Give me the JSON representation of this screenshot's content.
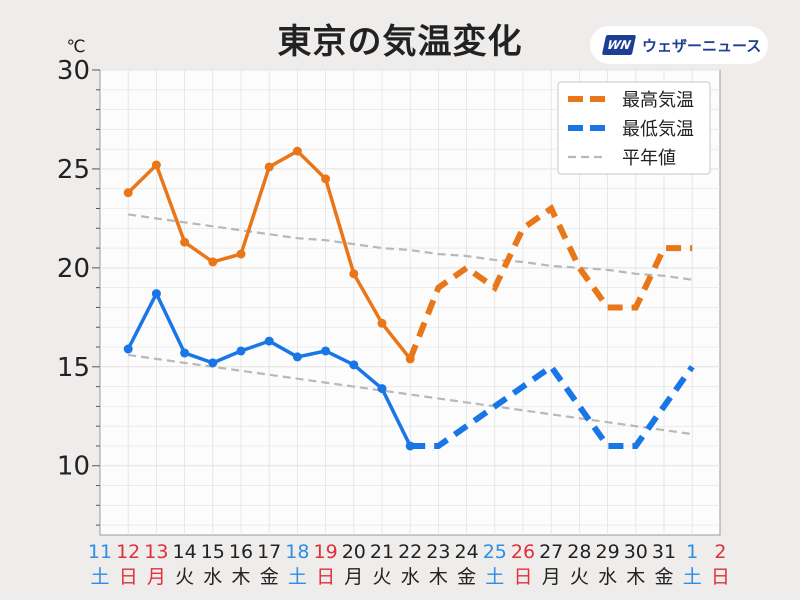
{
  "header": {
    "title": "東京の気温変化",
    "logo_mark": "WN",
    "logo_text": "ウェザーニュース"
  },
  "chart_data": {
    "type": "line",
    "title": "東京の気温変化",
    "unit_label": "℃",
    "ylim": [
      6.5,
      30
    ],
    "yticks": [
      10,
      15,
      20,
      25,
      30
    ],
    "grid": true,
    "legend_position": "top-right",
    "x_days": [
      "11",
      "12",
      "13",
      "14",
      "15",
      "16",
      "17",
      "18",
      "19",
      "20",
      "21",
      "22",
      "23",
      "24",
      "25",
      "26",
      "27",
      "28",
      "29",
      "30",
      "31",
      "1",
      "2"
    ],
    "x_weekdays": [
      "土",
      "日",
      "月",
      "火",
      "水",
      "木",
      "金",
      "土",
      "日",
      "月",
      "火",
      "水",
      "木",
      "金",
      "土",
      "日",
      "月",
      "火",
      "水",
      "木",
      "金",
      "土",
      "日"
    ],
    "x_label_colors": [
      "#2c8ee8",
      "#e0303a",
      "#e0303a",
      "#222222",
      "#222222",
      "#222222",
      "#222222",
      "#2c8ee8",
      "#e0303a",
      "#222222",
      "#222222",
      "#222222",
      "#222222",
      "#222222",
      "#2c8ee8",
      "#e0303a",
      "#222222",
      "#222222",
      "#222222",
      "#222222",
      "#222222",
      "#2c8ee8",
      "#e0303a"
    ],
    "series": [
      {
        "name": "最高気温",
        "color": "#e9771a",
        "observed": [
          23.8,
          25.2,
          21.3,
          20.3,
          20.7,
          25.1,
          25.9,
          24.5,
          19.7,
          17.2,
          15.4
        ],
        "forecast": [
          15.4,
          19,
          20,
          19,
          22,
          23,
          20,
          18,
          18,
          21,
          21
        ],
        "forecast_start_index": 11
      },
      {
        "name": "最低気温",
        "color": "#1976e6",
        "observed": [
          15.9,
          18.7,
          15.7,
          15.2,
          15.8,
          16.3,
          15.5,
          15.8,
          15.1,
          13.9,
          11.0
        ],
        "forecast": [
          11,
          11,
          12,
          13,
          14,
          15,
          13,
          11,
          11,
          13,
          15
        ],
        "forecast_start_index": 11
      },
      {
        "name": "平年値",
        "color": "#b8b8b8",
        "normal_high": [
          22.7,
          22.5,
          22.3,
          22.1,
          21.9,
          21.7,
          21.5,
          21.4,
          21.2,
          21.0,
          20.9,
          20.7,
          20.6,
          20.4,
          20.3,
          20.1,
          20.0,
          19.9,
          19.7,
          19.6,
          19.4
        ],
        "normal_low": [
          15.6,
          15.4,
          15.2,
          15.0,
          14.8,
          14.6,
          14.4,
          14.2,
          14.0,
          13.8,
          13.6,
          13.4,
          13.2,
          13.0,
          12.8,
          12.6,
          12.4,
          12.2,
          12.0,
          11.8,
          11.6
        ]
      }
    ]
  }
}
